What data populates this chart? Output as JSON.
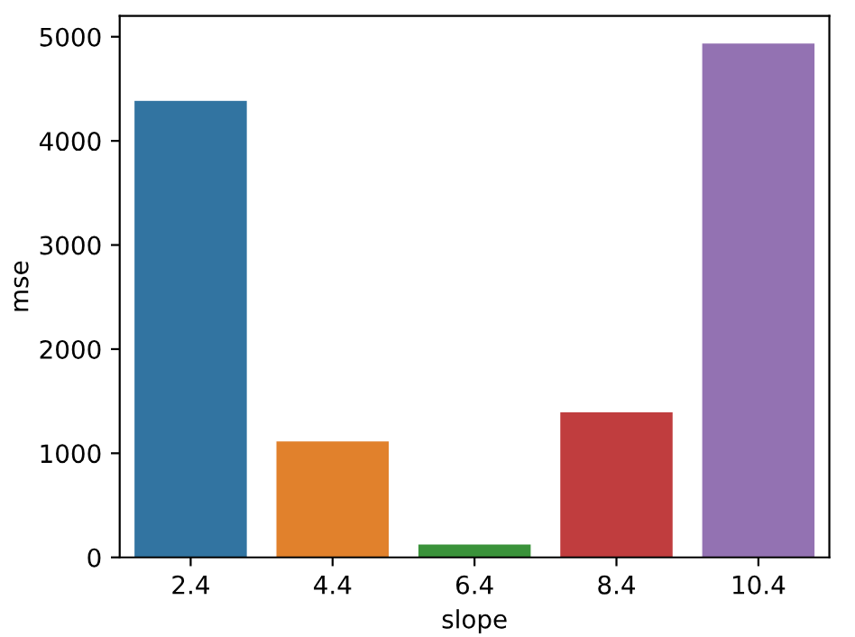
{
  "chart_data": {
    "type": "bar",
    "xlabel": "slope",
    "ylabel": "mse",
    "categories": [
      "2.4",
      "4.4",
      "6.4",
      "8.4",
      "10.4"
    ],
    "values": [
      4390,
      1120,
      130,
      1400,
      4940
    ],
    "colors": [
      "#3274a1",
      "#e1812c",
      "#3a923a",
      "#c03d3e",
      "#9372b2"
    ],
    "ylim": [
      0,
      5200
    ],
    "yticks": [
      0,
      1000,
      2000,
      3000,
      4000,
      5000
    ],
    "grid": false
  }
}
